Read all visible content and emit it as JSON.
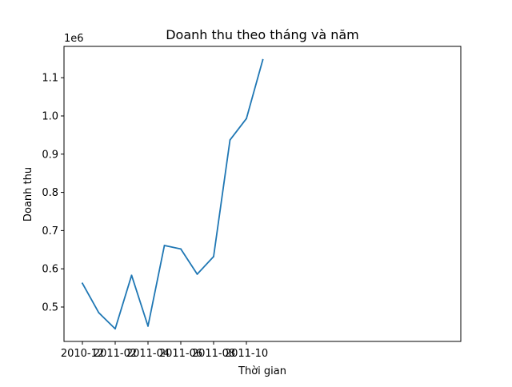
{
  "chart_data": {
    "type": "line",
    "title": "Doanh thu theo tháng và năm",
    "xlabel": "Thời gian",
    "ylabel": "Doanh thu",
    "y_offset_label": "1e6",
    "y_scale_factor": 1000000,
    "x": [
      "2010-12",
      "2011-01",
      "2011-02",
      "2011-03",
      "2011-04",
      "2011-05",
      "2011-06",
      "2011-07",
      "2011-08",
      "2011-09",
      "2011-10",
      "2011-11"
    ],
    "series": [
      {
        "values": [
          562000,
          485000,
          443000,
          583000,
          450000,
          661000,
          652000,
          586000,
          632000,
          937000,
          993000,
          1147000
        ]
      }
    ],
    "x_ticks": [
      "2010-12",
      "2011-02",
      "2011-04",
      "2011-06",
      "2011-08",
      "2011-10"
    ],
    "y_ticks": [
      500000,
      600000,
      700000,
      800000,
      900000,
      1000000,
      1100000
    ],
    "y_tick_labels": [
      "0.5",
      "0.6",
      "0.7",
      "0.8",
      "0.9",
      "1.0",
      "1.1"
    ],
    "ylim": [
      410000,
      1182000
    ],
    "grid": false,
    "legend": "none",
    "line_color": "#1f77b4"
  }
}
